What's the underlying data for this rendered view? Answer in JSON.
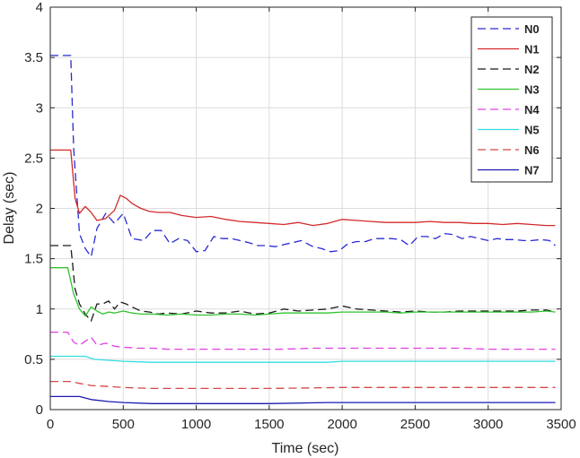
{
  "chart_data": {
    "type": "line",
    "title": "",
    "xlabel": "Time (sec)",
    "ylabel": "Delay (sec)",
    "xlim": [
      0,
      3500
    ],
    "ylim": [
      0,
      4
    ],
    "xticks": [
      0,
      500,
      1000,
      1500,
      2000,
      2500,
      3000,
      3500
    ],
    "yticks": [
      0,
      0.5,
      1,
      1.5,
      2,
      2.5,
      3,
      3.5,
      4
    ],
    "xtick_labels": [
      "0",
      "500",
      "1000",
      "1500",
      "2000",
      "2500",
      "3000",
      "3500"
    ],
    "ytick_labels": [
      "0",
      "0.5",
      "1",
      "1.5",
      "2",
      "2.5",
      "3",
      "3.5",
      "4"
    ],
    "grid": true,
    "legend_position": "top-right",
    "series": [
      {
        "name": "N0",
        "color": "#2a2ad4",
        "dash": "dashed",
        "x": [
          0,
          140,
          160,
          200,
          240,
          280,
          320,
          380,
          440,
          500,
          560,
          640,
          700,
          760,
          820,
          880,
          940,
          1000,
          1060,
          1120,
          1180,
          1240,
          1300,
          1360,
          1420,
          1480,
          1540,
          1600,
          1660,
          1720,
          1800,
          1860,
          1920,
          1980,
          2040,
          2100,
          2160,
          2220,
          2280,
          2340,
          2400,
          2460,
          2520,
          2580,
          2640,
          2700,
          2760,
          2820,
          2880,
          2940,
          3000,
          3060,
          3120,
          3180,
          3240,
          3300,
          3360,
          3420,
          3460
        ],
        "y": [
          3.52,
          3.52,
          2.6,
          1.75,
          1.6,
          1.52,
          1.8,
          1.95,
          1.85,
          1.95,
          1.7,
          1.68,
          1.78,
          1.78,
          1.65,
          1.7,
          1.68,
          1.57,
          1.58,
          1.72,
          1.7,
          1.7,
          1.68,
          1.66,
          1.63,
          1.63,
          1.62,
          1.64,
          1.66,
          1.68,
          1.62,
          1.6,
          1.57,
          1.58,
          1.65,
          1.67,
          1.67,
          1.7,
          1.7,
          1.7,
          1.69,
          1.63,
          1.72,
          1.72,
          1.7,
          1.75,
          1.74,
          1.7,
          1.72,
          1.7,
          1.68,
          1.7,
          1.69,
          1.69,
          1.68,
          1.68,
          1.69,
          1.68,
          1.63
        ]
      },
      {
        "name": "N1",
        "color": "#d42a2a",
        "dash": "solid",
        "x": [
          0,
          140,
          170,
          200,
          240,
          280,
          320,
          380,
          440,
          480,
          520,
          560,
          620,
          680,
          740,
          820,
          900,
          1000,
          1100,
          1200,
          1300,
          1400,
          1500,
          1600,
          1700,
          1800,
          1900,
          2000,
          2100,
          2200,
          2300,
          2400,
          2500,
          2600,
          2700,
          2800,
          2900,
          3000,
          3100,
          3200,
          3300,
          3400,
          3460
        ],
        "y": [
          2.58,
          2.58,
          2.1,
          1.95,
          2.02,
          1.96,
          1.88,
          1.9,
          1.98,
          2.13,
          2.1,
          2.05,
          2.0,
          1.97,
          1.96,
          1.96,
          1.93,
          1.91,
          1.92,
          1.89,
          1.87,
          1.86,
          1.85,
          1.84,
          1.86,
          1.83,
          1.85,
          1.89,
          1.88,
          1.87,
          1.86,
          1.86,
          1.86,
          1.87,
          1.86,
          1.86,
          1.85,
          1.85,
          1.84,
          1.85,
          1.84,
          1.83,
          1.83
        ]
      },
      {
        "name": "N2",
        "color": "#1a1a1a",
        "dash": "dashed",
        "x": [
          0,
          140,
          170,
          200,
          240,
          280,
          320,
          360,
          400,
          440,
          480,
          520,
          560,
          620,
          680,
          740,
          800,
          900,
          1000,
          1100,
          1200,
          1300,
          1400,
          1500,
          1600,
          1700,
          1800,
          1900,
          2000,
          2100,
          2200,
          2300,
          2400,
          2500,
          2600,
          2700,
          2800,
          2900,
          3000,
          3100,
          3200,
          3300,
          3400,
          3460
        ],
        "y": [
          1.63,
          1.63,
          1.2,
          1.05,
          0.95,
          0.88,
          1.05,
          1.05,
          1.08,
          1.0,
          1.07,
          1.05,
          1.02,
          0.98,
          0.97,
          0.95,
          0.96,
          0.95,
          0.98,
          0.96,
          0.96,
          0.98,
          0.95,
          0.96,
          1.0,
          0.98,
          0.99,
          1.0,
          1.03,
          1.0,
          0.99,
          0.98,
          0.97,
          0.98,
          0.97,
          0.97,
          0.98,
          0.98,
          0.98,
          0.98,
          0.98,
          0.99,
          0.99,
          0.97
        ]
      },
      {
        "name": "N3",
        "color": "#2ec42e",
        "dash": "solid",
        "x": [
          0,
          120,
          160,
          200,
          240,
          280,
          320,
          360,
          400,
          440,
          500,
          560,
          620,
          700,
          800,
          900,
          1000,
          1100,
          1200,
          1300,
          1400,
          1500,
          1600,
          1700,
          1800,
          1900,
          2000,
          2100,
          2200,
          2300,
          2400,
          2500,
          2600,
          2700,
          2800,
          2900,
          3000,
          3100,
          3200,
          3300,
          3400,
          3460
        ],
        "y": [
          1.41,
          1.41,
          1.15,
          1.0,
          0.93,
          1.02,
          0.98,
          0.95,
          0.97,
          0.96,
          0.98,
          0.96,
          0.95,
          0.95,
          0.94,
          0.95,
          0.94,
          0.94,
          0.95,
          0.95,
          0.94,
          0.95,
          0.96,
          0.96,
          0.96,
          0.96,
          0.97,
          0.97,
          0.97,
          0.97,
          0.96,
          0.97,
          0.97,
          0.97,
          0.97,
          0.97,
          0.97,
          0.97,
          0.97,
          0.97,
          0.98,
          0.97
        ]
      },
      {
        "name": "N4",
        "color": "#e040e0",
        "dash": "dashed",
        "x": [
          0,
          120,
          160,
          200,
          240,
          280,
          320,
          380,
          440,
          500,
          600,
          700,
          800,
          900,
          1000,
          1200,
          1400,
          1600,
          1800,
          2000,
          2200,
          2400,
          2600,
          2800,
          3000,
          3200,
          3460
        ],
        "y": [
          0.77,
          0.77,
          0.67,
          0.64,
          0.68,
          0.72,
          0.64,
          0.66,
          0.63,
          0.62,
          0.61,
          0.61,
          0.6,
          0.6,
          0.6,
          0.6,
          0.6,
          0.6,
          0.61,
          0.61,
          0.61,
          0.61,
          0.61,
          0.61,
          0.6,
          0.6,
          0.6
        ]
      },
      {
        "name": "N5",
        "color": "#33dde0",
        "dash": "solid",
        "x": [
          0,
          100,
          240,
          300,
          400,
          500,
          700,
          1000,
          1500,
          1900,
          2000,
          2500,
          3000,
          3460
        ],
        "y": [
          0.53,
          0.53,
          0.53,
          0.5,
          0.49,
          0.48,
          0.47,
          0.47,
          0.47,
          0.47,
          0.48,
          0.48,
          0.48,
          0.48
        ]
      },
      {
        "name": "N6",
        "color": "#d44848",
        "dash": "dashed",
        "x": [
          0,
          140,
          200,
          280,
          400,
          500,
          700,
          1000,
          1500,
          2000,
          2500,
          3000,
          3460
        ],
        "y": [
          0.28,
          0.28,
          0.26,
          0.24,
          0.23,
          0.22,
          0.21,
          0.21,
          0.21,
          0.22,
          0.22,
          0.22,
          0.22
        ]
      },
      {
        "name": "N7",
        "color": "#1a1ab0",
        "dash": "solid",
        "x": [
          0,
          100,
          200,
          280,
          400,
          500,
          700,
          1000,
          1500,
          1900,
          2000,
          2500,
          3000,
          3460
        ],
        "y": [
          0.13,
          0.13,
          0.13,
          0.1,
          0.08,
          0.07,
          0.06,
          0.06,
          0.06,
          0.07,
          0.07,
          0.07,
          0.07,
          0.07
        ]
      }
    ]
  }
}
